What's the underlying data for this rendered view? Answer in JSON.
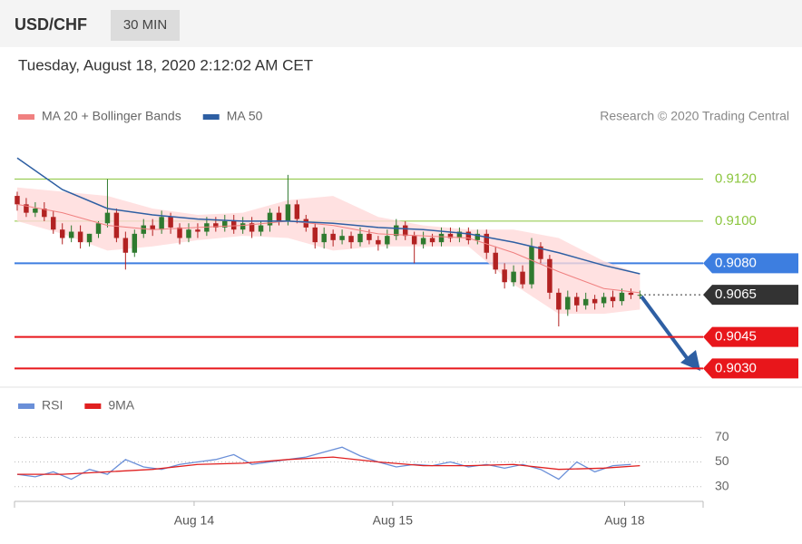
{
  "header": {
    "symbol": "USD/CHF",
    "interval": "30 MIN",
    "timestamp": "Tuesday, August 18, 2020 2:12:02 AM CET"
  },
  "chart_data": [
    {
      "type": "candlestick",
      "source": "Research © 2020 Trading Central",
      "up_color": "#2f7a2f",
      "down_color": "#b22222",
      "xlim": [
        -0.5,
        76
      ],
      "ylim": [
        0.9022,
        0.9162
      ],
      "x": [
        0,
        1,
        2,
        3,
        4,
        5,
        6,
        7,
        8,
        9,
        10,
        11,
        12,
        13,
        14,
        15,
        16,
        17,
        18,
        19,
        20,
        21,
        22,
        23,
        24,
        25,
        26,
        27,
        28,
        29,
        30,
        31,
        32,
        33,
        34,
        35,
        36,
        37,
        38,
        39,
        40,
        41,
        42,
        43,
        44,
        45,
        46,
        47,
        48,
        49,
        50,
        51,
        52,
        53,
        54,
        55,
        56,
        57,
        58,
        59,
        60,
        61,
        62,
        63,
        64,
        65,
        66,
        67,
        68,
        69
      ],
      "open": [
        0.9112,
        0.9108,
        0.9104,
        0.9106,
        0.9102,
        0.9096,
        0.9092,
        0.9095,
        0.909,
        0.9094,
        0.9099,
        0.9104,
        0.9092,
        0.9085,
        0.9094,
        0.9098,
        0.9096,
        0.9102,
        0.9097,
        0.9092,
        0.9096,
        0.9095,
        0.9099,
        0.9097,
        0.91,
        0.9096,
        0.9099,
        0.9095,
        0.9098,
        0.9104,
        0.91,
        0.9108,
        0.9101,
        0.9097,
        0.909,
        0.9094,
        0.9091,
        0.9093,
        0.909,
        0.9094,
        0.9091,
        0.9089,
        0.9093,
        0.9098,
        0.9093,
        0.9089,
        0.9092,
        0.909,
        0.9094,
        0.9092,
        0.9095,
        0.9091,
        0.9094,
        0.9085,
        0.9077,
        0.9071,
        0.9076,
        0.907,
        0.9088,
        0.9082,
        0.9066,
        0.9058,
        0.9064,
        0.906,
        0.9063,
        0.9061,
        0.9064,
        0.9062,
        0.9066,
        0.9065
      ],
      "high": [
        0.9114,
        0.9111,
        0.9109,
        0.9109,
        0.9105,
        0.9099,
        0.9098,
        0.9098,
        0.9094,
        0.91,
        0.912,
        0.9106,
        0.9095,
        0.9096,
        0.9101,
        0.9101,
        0.9105,
        0.9104,
        0.9099,
        0.9099,
        0.9099,
        0.9102,
        0.9102,
        0.9103,
        0.9103,
        0.9102,
        0.9102,
        0.91,
        0.9106,
        0.9107,
        0.9122,
        0.911,
        0.9103,
        0.9099,
        0.9097,
        0.9096,
        0.9096,
        0.9095,
        0.9097,
        0.9096,
        0.9093,
        0.9096,
        0.9101,
        0.91,
        0.9095,
        0.9095,
        0.9094,
        0.9097,
        0.9097,
        0.9097,
        0.9097,
        0.9096,
        0.9096,
        0.9088,
        0.908,
        0.9079,
        0.9079,
        0.9092,
        0.909,
        0.9084,
        0.9068,
        0.9067,
        0.9066,
        0.9066,
        0.9065,
        0.9066,
        0.9067,
        0.9068,
        0.9068,
        0.9067
      ],
      "low": [
        0.9105,
        0.9102,
        0.9102,
        0.91,
        0.9094,
        0.9089,
        0.909,
        0.9087,
        0.9088,
        0.9092,
        0.9097,
        0.909,
        0.9077,
        0.9083,
        0.9092,
        0.9093,
        0.9094,
        0.9094,
        0.9089,
        0.909,
        0.9092,
        0.9093,
        0.9095,
        0.9095,
        0.9094,
        0.9094,
        0.9092,
        0.9093,
        0.9095,
        0.9098,
        0.9098,
        0.9099,
        0.9095,
        0.9087,
        0.9087,
        0.9088,
        0.9089,
        0.9087,
        0.9088,
        0.9089,
        0.9086,
        0.9087,
        0.9091,
        0.9091,
        0.908,
        0.9087,
        0.9088,
        0.9088,
        0.909,
        0.909,
        0.9089,
        0.9089,
        0.9082,
        0.9075,
        0.9068,
        0.9069,
        0.9068,
        0.9068,
        0.908,
        0.9063,
        0.905,
        0.9055,
        0.9057,
        0.9058,
        0.9058,
        0.9059,
        0.9059,
        0.906,
        0.9063,
        0.9063
      ],
      "close": [
        0.9108,
        0.9104,
        0.9106,
        0.9102,
        0.9096,
        0.9092,
        0.9095,
        0.909,
        0.9094,
        0.9099,
        0.9104,
        0.9092,
        0.9085,
        0.9094,
        0.9098,
        0.9096,
        0.9102,
        0.9097,
        0.9092,
        0.9096,
        0.9095,
        0.9099,
        0.9097,
        0.91,
        0.9096,
        0.9099,
        0.9095,
        0.9098,
        0.9104,
        0.91,
        0.9108,
        0.9101,
        0.9097,
        0.909,
        0.9094,
        0.9091,
        0.9093,
        0.909,
        0.9094,
        0.9091,
        0.9089,
        0.9093,
        0.9098,
        0.9093,
        0.9089,
        0.9092,
        0.909,
        0.9094,
        0.9092,
        0.9095,
        0.9091,
        0.9094,
        0.9085,
        0.9077,
        0.9071,
        0.9076,
        0.907,
        0.9088,
        0.9082,
        0.9066,
        0.9058,
        0.9064,
        0.906,
        0.9063,
        0.9061,
        0.9064,
        0.9062,
        0.9066,
        0.9065,
        0.9065
      ],
      "series": [
        {
          "name": "MA 20 + Bollinger Bands",
          "color": "#f08080",
          "band_color": "#ffd9d9",
          "x": [
            0,
            5,
            10,
            15,
            20,
            25,
            30,
            35,
            40,
            45,
            50,
            55,
            60,
            65,
            69
          ],
          "values": [
            0.9108,
            0.9104,
            0.9098,
            0.9096,
            0.9097,
            0.9098,
            0.91,
            0.9098,
            0.9094,
            0.9093,
            0.9092,
            0.9085,
            0.9076,
            0.9068,
            0.9066
          ],
          "upper": [
            0.9116,
            0.9114,
            0.9112,
            0.9106,
            0.9103,
            0.9104,
            0.911,
            0.9112,
            0.9102,
            0.9098,
            0.9096,
            0.9096,
            0.9092,
            0.9081,
            0.9075
          ],
          "lower": [
            0.91,
            0.9094,
            0.9086,
            0.9088,
            0.9091,
            0.9093,
            0.9092,
            0.9086,
            0.9088,
            0.9088,
            0.9088,
            0.907,
            0.9056,
            0.9056,
            0.9058
          ]
        },
        {
          "name": "MA 50",
          "color": "#2e5fa3",
          "x": [
            0,
            5,
            10,
            15,
            20,
            25,
            30,
            35,
            40,
            45,
            50,
            55,
            60,
            65,
            69
          ],
          "values": [
            0.913,
            0.9115,
            0.9106,
            0.9103,
            0.9101,
            0.91,
            0.91,
            0.9099,
            0.9097,
            0.9096,
            0.9094,
            0.909,
            0.9085,
            0.9079,
            0.9075
          ]
        }
      ],
      "levels": [
        {
          "value": 0.912,
          "label": "0.9120",
          "color": "#8cc63f",
          "boxed": false
        },
        {
          "value": 0.91,
          "label": "0.9100",
          "color": "#8cc63f",
          "boxed": false
        },
        {
          "value": 0.908,
          "label": "0.9080",
          "color": "#3d7ee0",
          "boxed": true
        },
        {
          "value": 0.9065,
          "label": "0.9065",
          "color": "#333333",
          "boxed": true,
          "dotted": true
        },
        {
          "value": 0.9045,
          "label": "0.9045",
          "color": "#e8161b",
          "boxed": true
        },
        {
          "value": 0.903,
          "label": "0.9030",
          "color": "#e8161b",
          "boxed": true
        }
      ]
    },
    {
      "type": "line",
      "xlim": [
        -0.5,
        76
      ],
      "ylim": [
        18,
        85
      ],
      "yticks": [
        70,
        50,
        30
      ],
      "xticks": [
        {
          "value": 19.6,
          "label": "Aug 14"
        },
        {
          "value": 41.6,
          "label": "Aug 15"
        },
        {
          "value": 67.3,
          "label": "Aug 18"
        }
      ],
      "series": [
        {
          "name": "RSI",
          "color": "#6a8fd8",
          "x": [
            0,
            2,
            4,
            6,
            8,
            10,
            12,
            14,
            16,
            18,
            20,
            22,
            24,
            26,
            28,
            30,
            32,
            34,
            36,
            38,
            40,
            42,
            44,
            46,
            48,
            50,
            52,
            54,
            56,
            58,
            60,
            62,
            64,
            66,
            68
          ],
          "values": [
            40,
            38,
            42,
            36,
            44,
            40,
            52,
            46,
            44,
            48,
            50,
            52,
            56,
            48,
            50,
            52,
            54,
            58,
            62,
            55,
            50,
            46,
            48,
            47,
            50,
            46,
            48,
            45,
            48,
            44,
            36,
            50,
            42,
            47,
            48
          ]
        },
        {
          "name": "9MA",
          "color": "#e02020",
          "x": [
            0,
            5,
            10,
            15,
            20,
            25,
            30,
            35,
            40,
            45,
            50,
            55,
            60,
            65,
            69
          ],
          "values": [
            40,
            40,
            42,
            44,
            48,
            49,
            52,
            54,
            50,
            47,
            47,
            48,
            44,
            45,
            47
          ]
        }
      ]
    }
  ]
}
